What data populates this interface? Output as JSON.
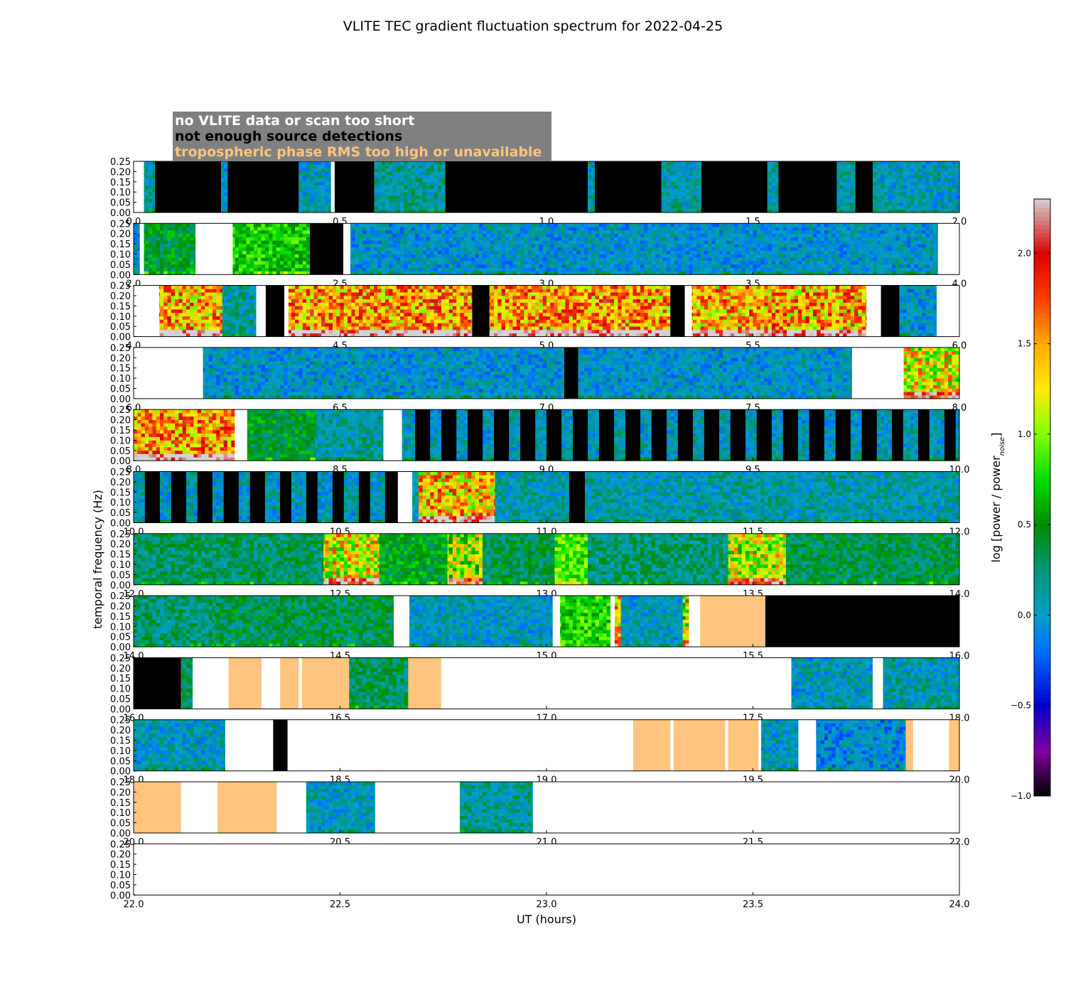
{
  "chart_data": {
    "type": "heatmap",
    "title": "VLITE TEC gradient fluctuation spectrum for 2022-04-25",
    "xlabel": "UT (hours)",
    "ylabel": "temporal frequency (Hz)",
    "legend": {
      "placement": "top-left",
      "entries": [
        {
          "label": "no VLITE data or scan too short",
          "text_color": "#ffffff",
          "meaning": "white"
        },
        {
          "label": "not enough source detections",
          "text_color": "#000000",
          "meaning": "black"
        },
        {
          "label": "tropospheric phase RMS too high or unavailable",
          "text_color": "#ffc47e",
          "meaning": "orange"
        }
      ],
      "box_color": "#808080"
    },
    "colors": {
      "no_data": "#ffffff",
      "insufficient": "#000000",
      "tropo": "#ffc47e",
      "saturated": "#cfcfcf"
    },
    "ylim": [
      0,
      0.25
    ],
    "yticks": [
      "0.00",
      "0.05",
      "0.10",
      "0.15",
      "0.20",
      "0.25"
    ],
    "colorbar": {
      "label_main": "log [power / power",
      "label_sub": "noise",
      "label_end": "]",
      "range": [
        -1.0,
        2.3
      ],
      "ticks": [
        -1.0,
        -0.5,
        0.0,
        0.5,
        1.0,
        1.5,
        2.0
      ],
      "tick_labels": [
        "−1.0",
        "−0.5",
        "0.0",
        "0.5",
        "1.0",
        "1.5",
        "2.0"
      ]
    },
    "panels": [
      {
        "xlim": [
          0,
          2
        ],
        "xticks": [
          "0.0",
          "0.5",
          "1.0",
          "1.5",
          "2.0"
        ],
        "segments": [
          {
            "x0": 0.0,
            "x1": 0.025,
            "kind": "none"
          },
          {
            "x0": 0.025,
            "x1": 0.052,
            "kind": "data",
            "level": 0.15
          },
          {
            "x0": 0.052,
            "x1": 0.212,
            "kind": "black"
          },
          {
            "x0": 0.212,
            "x1": 0.228,
            "kind": "data",
            "level": 0.05
          },
          {
            "x0": 0.228,
            "x1": 0.4,
            "kind": "black"
          },
          {
            "x0": 0.4,
            "x1": 0.478,
            "kind": "data",
            "level": 0.05
          },
          {
            "x0": 0.478,
            "x1": 0.487,
            "kind": "none"
          },
          {
            "x0": 0.487,
            "x1": 0.583,
            "kind": "black"
          },
          {
            "x0": 0.583,
            "x1": 0.755,
            "kind": "data",
            "level": 0.15
          },
          {
            "x0": 0.755,
            "x1": 1.1,
            "kind": "black"
          },
          {
            "x0": 1.1,
            "x1": 1.117,
            "kind": "data",
            "level": 0.1
          },
          {
            "x0": 1.117,
            "x1": 1.278,
            "kind": "black"
          },
          {
            "x0": 1.278,
            "x1": 1.375,
            "kind": "data",
            "level": 0.1
          },
          {
            "x0": 1.375,
            "x1": 1.535,
            "kind": "black"
          },
          {
            "x0": 1.535,
            "x1": 1.562,
            "kind": "data",
            "level": 0.1
          },
          {
            "x0": 1.562,
            "x1": 1.703,
            "kind": "black"
          },
          {
            "x0": 1.703,
            "x1": 1.748,
            "kind": "data",
            "level": 0.1
          },
          {
            "x0": 1.748,
            "x1": 1.79,
            "kind": "black"
          },
          {
            "x0": 1.79,
            "x1": 2.0,
            "kind": "data",
            "level": 0.05
          }
        ]
      },
      {
        "xlim": [
          2,
          4
        ],
        "xticks": [
          "2.0",
          "2.5",
          "3.0",
          "3.5",
          "4.0"
        ],
        "segments": [
          {
            "x0": 2.0,
            "x1": 2.015,
            "kind": "data",
            "level": 0.0
          },
          {
            "x0": 2.015,
            "x1": 2.025,
            "kind": "none"
          },
          {
            "x0": 2.025,
            "x1": 2.15,
            "kind": "data",
            "level": 0.45
          },
          {
            "x0": 2.15,
            "x1": 2.24,
            "kind": "none"
          },
          {
            "x0": 2.24,
            "x1": 2.427,
            "kind": "data",
            "level": 0.7
          },
          {
            "x0": 2.427,
            "x1": 2.508,
            "kind": "black"
          },
          {
            "x0": 2.508,
            "x1": 2.525,
            "kind": "none"
          },
          {
            "x0": 2.525,
            "x1": 3.948,
            "kind": "data",
            "level": 0.0
          },
          {
            "x0": 3.948,
            "x1": 4.0,
            "kind": "none"
          }
        ]
      },
      {
        "xlim": [
          4,
          6
        ],
        "xticks": [
          "4.0",
          "4.5",
          "5.0",
          "5.5",
          "6.0"
        ],
        "segments": [
          {
            "x0": 4.0,
            "x1": 4.062,
            "kind": "none"
          },
          {
            "x0": 4.062,
            "x1": 4.215,
            "kind": "data",
            "level": 1.45
          },
          {
            "x0": 4.215,
            "x1": 4.297,
            "kind": "data",
            "level": 0.15
          },
          {
            "x0": 4.297,
            "x1": 4.32,
            "kind": "none"
          },
          {
            "x0": 4.32,
            "x1": 4.365,
            "kind": "black"
          },
          {
            "x0": 4.365,
            "x1": 4.375,
            "kind": "none"
          },
          {
            "x0": 4.375,
            "x1": 4.82,
            "kind": "data",
            "level": 1.55
          },
          {
            "x0": 4.82,
            "x1": 4.862,
            "kind": "black"
          },
          {
            "x0": 4.862,
            "x1": 5.3,
            "kind": "data",
            "level": 1.55
          },
          {
            "x0": 5.3,
            "x1": 5.335,
            "kind": "black"
          },
          {
            "x0": 5.335,
            "x1": 5.352,
            "kind": "none"
          },
          {
            "x0": 5.352,
            "x1": 5.775,
            "kind": "data",
            "level": 1.45
          },
          {
            "x0": 5.775,
            "x1": 5.81,
            "kind": "none"
          },
          {
            "x0": 5.81,
            "x1": 5.855,
            "kind": "black"
          },
          {
            "x0": 5.855,
            "x1": 5.945,
            "kind": "data",
            "level": 0.0
          },
          {
            "x0": 5.945,
            "x1": 6.0,
            "kind": "none"
          }
        ]
      },
      {
        "xlim": [
          6,
          8
        ],
        "xticks": [
          "6.0",
          "6.5",
          "7.0",
          "7.5",
          "8.0"
        ],
        "segments": [
          {
            "x0": 6.0,
            "x1": 6.168,
            "kind": "none"
          },
          {
            "x0": 6.168,
            "x1": 7.043,
            "kind": "data",
            "level": 0.0
          },
          {
            "x0": 7.043,
            "x1": 7.077,
            "kind": "black"
          },
          {
            "x0": 7.077,
            "x1": 7.74,
            "kind": "data",
            "level": 0.0
          },
          {
            "x0": 7.74,
            "x1": 7.865,
            "kind": "none"
          },
          {
            "x0": 7.865,
            "x1": 8.0,
            "kind": "data",
            "level": 1.2
          }
        ]
      },
      {
        "xlim": [
          8,
          10
        ],
        "xticks": [
          "8.0",
          "8.5",
          "9.0",
          "9.5",
          "10.0"
        ],
        "segments": [
          {
            "x0": 8.0,
            "x1": 8.245,
            "kind": "data",
            "level": 1.55
          },
          {
            "x0": 8.245,
            "x1": 8.275,
            "kind": "none"
          },
          {
            "x0": 8.275,
            "x1": 8.44,
            "kind": "data",
            "level": 0.45
          },
          {
            "x0": 8.44,
            "x1": 8.605,
            "kind": "data",
            "level": 0.15
          },
          {
            "x0": 8.605,
            "x1": 8.65,
            "kind": "none"
          },
          {
            "x0": 8.65,
            "x1": 10.0,
            "kind": "stripes",
            "level": 0.05,
            "period": 0.064,
            "black": 0.034
          }
        ]
      },
      {
        "xlim": [
          10,
          12
        ],
        "xticks": [
          "10.0",
          "10.5",
          "11.0",
          "11.5",
          "12.0"
        ],
        "segments": [
          {
            "x0": 10.0,
            "x1": 10.64,
            "kind": "stripes",
            "level": 0.05,
            "period": 0.064,
            "black": 0.034
          },
          {
            "x0": 10.64,
            "x1": 10.675,
            "kind": "none"
          },
          {
            "x0": 10.675,
            "x1": 10.69,
            "kind": "data",
            "level": 0.1
          },
          {
            "x0": 10.69,
            "x1": 10.875,
            "kind": "data",
            "level": 1.4
          },
          {
            "x0": 10.875,
            "x1": 11.055,
            "kind": "data",
            "level": 0.1
          },
          {
            "x0": 11.055,
            "x1": 11.093,
            "kind": "black"
          },
          {
            "x0": 11.093,
            "x1": 12.0,
            "kind": "data",
            "level": 0.1
          }
        ]
      },
      {
        "xlim": [
          12,
          14
        ],
        "xticks": [
          "12.0",
          "12.5",
          "13.0",
          "13.5",
          "14.0"
        ],
        "segments": [
          {
            "x0": 12.0,
            "x1": 12.46,
            "kind": "data",
            "level": 0.3
          },
          {
            "x0": 12.46,
            "x1": 12.595,
            "kind": "data",
            "level": 1.2
          },
          {
            "x0": 12.595,
            "x1": 12.76,
            "kind": "data",
            "level": 0.5
          },
          {
            "x0": 12.76,
            "x1": 12.845,
            "kind": "data",
            "level": 1.0
          },
          {
            "x0": 12.845,
            "x1": 13.02,
            "kind": "data",
            "level": 0.35
          },
          {
            "x0": 13.02,
            "x1": 13.1,
            "kind": "data",
            "level": 0.9
          },
          {
            "x0": 13.1,
            "x1": 13.44,
            "kind": "data",
            "level": 0.25
          },
          {
            "x0": 13.44,
            "x1": 13.58,
            "kind": "data",
            "level": 1.1
          },
          {
            "x0": 13.58,
            "x1": 14.0,
            "kind": "data",
            "level": 0.35
          }
        ]
      },
      {
        "xlim": [
          14,
          16
        ],
        "xticks": [
          "14.0",
          "14.5",
          "15.0",
          "15.5",
          "16.0"
        ],
        "segments": [
          {
            "x0": 14.0,
            "x1": 14.195,
            "kind": "data",
            "level": 0.25
          },
          {
            "x0": 14.195,
            "x1": 14.63,
            "kind": "data",
            "level": 0.35
          },
          {
            "x0": 14.63,
            "x1": 14.668,
            "kind": "none"
          },
          {
            "x0": 14.668,
            "x1": 15.015,
            "kind": "data",
            "level": 0.05
          },
          {
            "x0": 15.015,
            "x1": 15.033,
            "kind": "none"
          },
          {
            "x0": 15.033,
            "x1": 15.155,
            "kind": "data",
            "level": 0.75
          },
          {
            "x0": 15.155,
            "x1": 15.165,
            "kind": "none"
          },
          {
            "x0": 15.165,
            "x1": 15.18,
            "kind": "data",
            "level": 1.3
          },
          {
            "x0": 15.18,
            "x1": 15.33,
            "kind": "data",
            "level": 0.05
          },
          {
            "x0": 15.33,
            "x1": 15.345,
            "kind": "data",
            "level": 1.0
          },
          {
            "x0": 15.345,
            "x1": 15.372,
            "kind": "none"
          },
          {
            "x0": 15.372,
            "x1": 15.53,
            "kind": "tropo"
          },
          {
            "x0": 15.53,
            "x1": 16.0,
            "kind": "black"
          }
        ]
      },
      {
        "xlim": [
          16,
          18
        ],
        "xticks": [
          "16.0",
          "16.5",
          "17.0",
          "17.5",
          "18.0"
        ],
        "segments": [
          {
            "x0": 16.0,
            "x1": 16.115,
            "kind": "black"
          },
          {
            "x0": 16.115,
            "x1": 16.143,
            "kind": "data",
            "level": 0.3
          },
          {
            "x0": 16.143,
            "x1": 16.23,
            "kind": "none"
          },
          {
            "x0": 16.23,
            "x1": 16.31,
            "kind": "tropo"
          },
          {
            "x0": 16.31,
            "x1": 16.355,
            "kind": "none"
          },
          {
            "x0": 16.355,
            "x1": 16.4,
            "kind": "tropo"
          },
          {
            "x0": 16.4,
            "x1": 16.408,
            "kind": "none"
          },
          {
            "x0": 16.408,
            "x1": 16.522,
            "kind": "tropo"
          },
          {
            "x0": 16.522,
            "x1": 16.665,
            "kind": "data",
            "level": 0.3
          },
          {
            "x0": 16.665,
            "x1": 16.745,
            "kind": "tropo"
          },
          {
            "x0": 16.745,
            "x1": 17.593,
            "kind": "none"
          },
          {
            "x0": 17.593,
            "x1": 17.79,
            "kind": "data",
            "level": 0.05
          },
          {
            "x0": 17.79,
            "x1": 17.815,
            "kind": "none"
          },
          {
            "x0": 17.815,
            "x1": 18.0,
            "kind": "data",
            "level": 0.1
          }
        ]
      },
      {
        "xlim": [
          18,
          20
        ],
        "xticks": [
          "18.0",
          "18.5",
          "19.0",
          "19.5",
          "20.0"
        ],
        "segments": [
          {
            "x0": 18.0,
            "x1": 18.222,
            "kind": "data",
            "level": 0.05
          },
          {
            "x0": 18.222,
            "x1": 18.338,
            "kind": "none"
          },
          {
            "x0": 18.338,
            "x1": 18.373,
            "kind": "black"
          },
          {
            "x0": 18.373,
            "x1": 19.21,
            "kind": "none"
          },
          {
            "x0": 19.21,
            "x1": 19.3,
            "kind": "tropo"
          },
          {
            "x0": 19.3,
            "x1": 19.308,
            "kind": "none"
          },
          {
            "x0": 19.308,
            "x1": 19.433,
            "kind": "tropo"
          },
          {
            "x0": 19.433,
            "x1": 19.44,
            "kind": "none"
          },
          {
            "x0": 19.44,
            "x1": 19.513,
            "kind": "tropo"
          },
          {
            "x0": 19.513,
            "x1": 19.52,
            "kind": "none"
          },
          {
            "x0": 19.52,
            "x1": 19.61,
            "kind": "data",
            "level": 0.05
          },
          {
            "x0": 19.61,
            "x1": 19.653,
            "kind": "none"
          },
          {
            "x0": 19.653,
            "x1": 19.87,
            "kind": "data",
            "level": -0.05
          },
          {
            "x0": 19.87,
            "x1": 19.888,
            "kind": "tropo"
          },
          {
            "x0": 19.888,
            "x1": 19.975,
            "kind": "none"
          },
          {
            "x0": 19.975,
            "x1": 20.0,
            "kind": "tropo"
          }
        ]
      },
      {
        "xlim": [
          20,
          22
        ],
        "xticks": [
          "20.0",
          "20.5",
          "21.0",
          "21.5",
          "22.0"
        ],
        "segments": [
          {
            "x0": 20.0,
            "x1": 20.115,
            "kind": "tropo"
          },
          {
            "x0": 20.115,
            "x1": 20.203,
            "kind": "none"
          },
          {
            "x0": 20.203,
            "x1": 20.347,
            "kind": "tropo"
          },
          {
            "x0": 20.347,
            "x1": 20.418,
            "kind": "none"
          },
          {
            "x0": 20.418,
            "x1": 20.585,
            "kind": "data",
            "level": 0.05
          },
          {
            "x0": 20.585,
            "x1": 20.79,
            "kind": "none"
          },
          {
            "x0": 20.79,
            "x1": 20.967,
            "kind": "data",
            "level": 0.15
          },
          {
            "x0": 20.967,
            "x1": 22.0,
            "kind": "none"
          }
        ]
      },
      {
        "xlim": [
          22,
          24
        ],
        "xticks": [
          "22.0",
          "22.5",
          "23.0",
          "23.5",
          "24.0"
        ],
        "segments": [
          {
            "x0": 22.0,
            "x1": 24.0,
            "kind": "none"
          }
        ]
      }
    ]
  }
}
